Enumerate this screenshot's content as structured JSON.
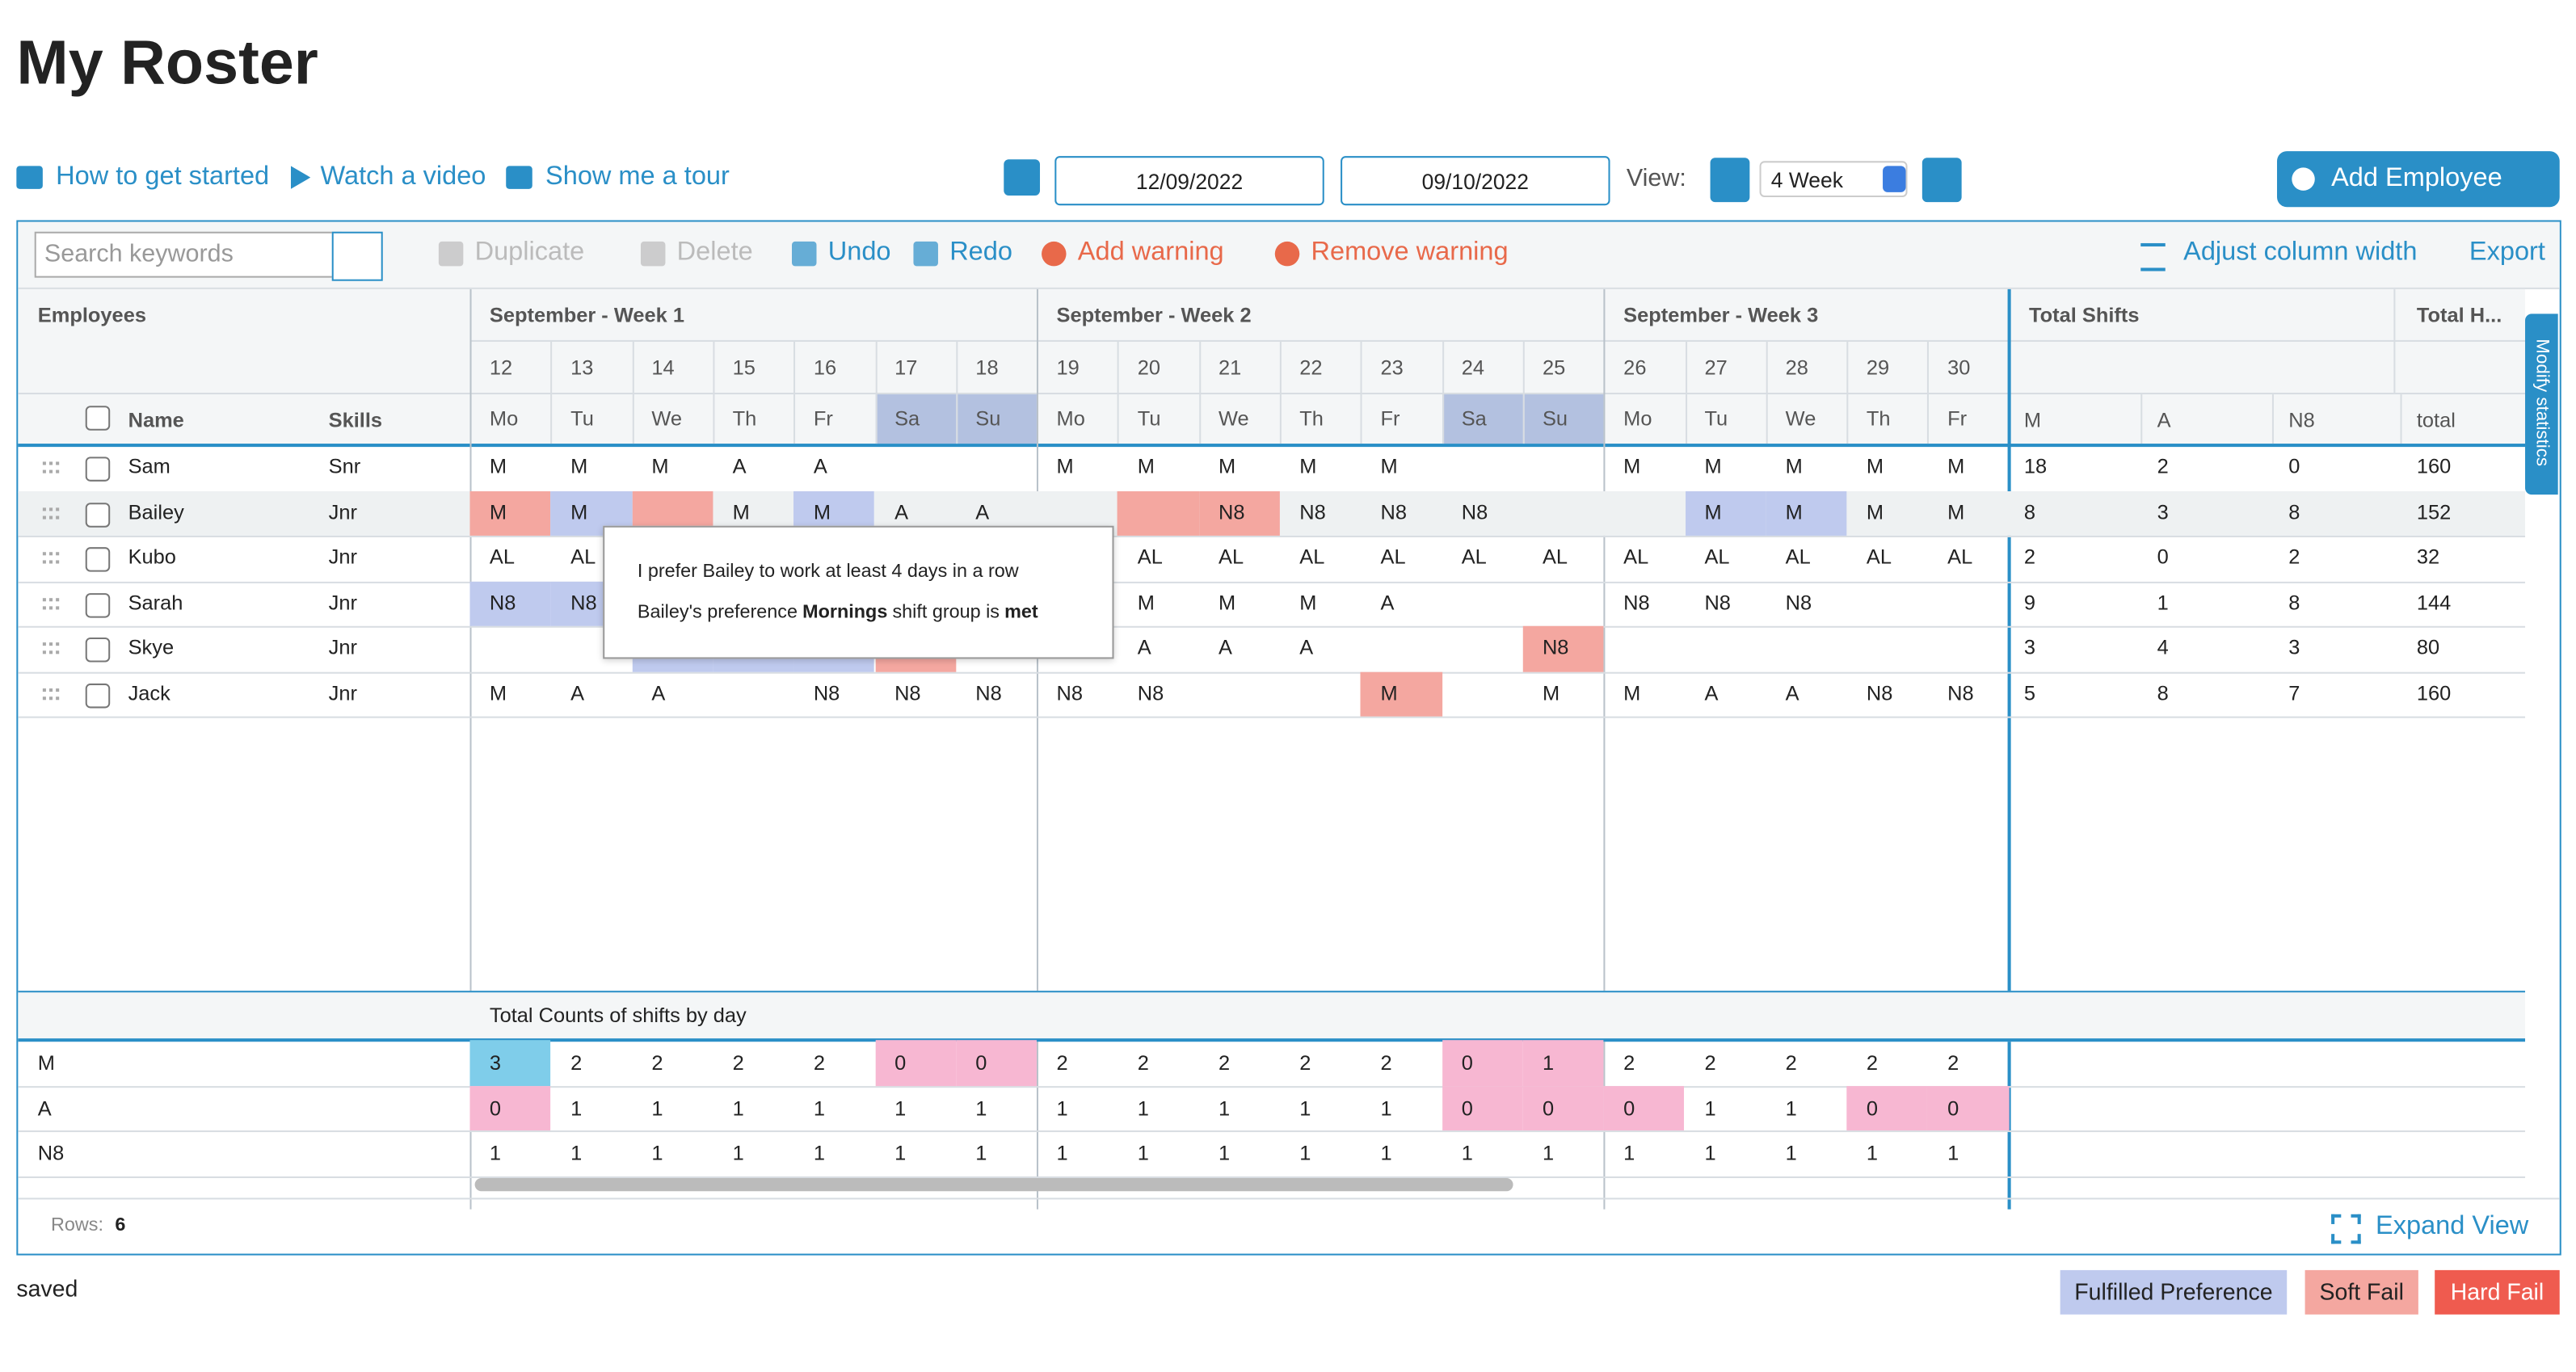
{
  "header": {
    "title": "My Roster"
  },
  "links": [
    "How to get started",
    "Watch a video",
    "Show me a tour"
  ],
  "date_range": {
    "start": "12/09/2022",
    "end": "09/10/2022"
  },
  "view": {
    "label": "View:",
    "value": "4 Week"
  },
  "add_button": "Add Employee",
  "toolbar": {
    "search_placeholder": "Search keywords",
    "actions": [
      "Duplicate",
      "Delete",
      "Undo",
      "Redo",
      "Add warning",
      "Remove warning"
    ],
    "right": [
      "Adjust column width",
      "Export"
    ]
  },
  "table": {
    "employees_header": "Employees",
    "name_header": "Name",
    "skills_header": "Skills",
    "weeks": [
      {
        "label": "September - Week 1",
        "days": [
          {
            "date": 12,
            "weekday": "Mo"
          },
          {
            "date": 13,
            "weekday": "Tu"
          },
          {
            "date": 14,
            "weekday": "We"
          },
          {
            "date": 15,
            "weekday": "Th"
          },
          {
            "date": 16,
            "weekday": "Fr"
          },
          {
            "date": 17,
            "weekday": "Sa",
            "shaded": true
          },
          {
            "date": 18,
            "weekday": "Su",
            "shaded": true
          }
        ]
      },
      {
        "label": "September - Week 2",
        "days": [
          {
            "date": 19,
            "weekday": "Mo"
          },
          {
            "date": 20,
            "weekday": "Tu"
          },
          {
            "date": 21,
            "weekday": "We"
          },
          {
            "date": 22,
            "weekday": "Th"
          },
          {
            "date": 23,
            "weekday": "Fr"
          },
          {
            "date": 24,
            "weekday": "Sa",
            "shaded": true
          },
          {
            "date": 25,
            "weekday": "Su",
            "shaded": true
          }
        ]
      },
      {
        "label": "September - Week 3",
        "days": [
          {
            "date": 26,
            "weekday": "Mo"
          },
          {
            "date": 27,
            "weekday": "Tu"
          },
          {
            "date": 28,
            "weekday": "We"
          },
          {
            "date": 29,
            "weekday": "Th"
          },
          {
            "date": 30,
            "weekday": "Fr"
          }
        ]
      }
    ],
    "stats_headers": [
      "Total Shifts",
      "Total H..."
    ],
    "stat_columns": [
      "M",
      "A",
      "N8",
      "total"
    ],
    "rows": [
      {
        "name": "Sam",
        "skills": "Snr",
        "shifts": [
          "M",
          "M",
          "M",
          "A",
          "A",
          null,
          null,
          "M",
          "M",
          "M",
          "M",
          "M",
          null,
          null,
          "M",
          "M",
          "M",
          "M",
          "M"
        ],
        "highlights": [
          null,
          null,
          null,
          null,
          null,
          null,
          null,
          null,
          null,
          null,
          null,
          null,
          null,
          null,
          null,
          null,
          null,
          null,
          null
        ],
        "stats": [
          18,
          2,
          0,
          160
        ]
      },
      {
        "name": "Bailey",
        "skills": "Jnr",
        "shifts": [
          "M",
          "M",
          null,
          "M",
          "M",
          "A",
          "A",
          null,
          null,
          "N8",
          "N8",
          "N8",
          "N8",
          null,
          null,
          "M",
          "M",
          "M",
          "M"
        ],
        "highlights": [
          "soft",
          "pref",
          "soft",
          null,
          "pref",
          null,
          null,
          null,
          "soft",
          "soft",
          null,
          null,
          null,
          null,
          null,
          "pref",
          "pref",
          null,
          null
        ],
        "stats": [
          8,
          3,
          8,
          152
        ]
      },
      {
        "name": "Kubo",
        "skills": "Jnr",
        "shifts": [
          "AL",
          "AL",
          null,
          null,
          null,
          null,
          null,
          null,
          "AL",
          "AL",
          "AL",
          "AL",
          "AL",
          "AL",
          "AL",
          "AL",
          "AL",
          "AL",
          "AL"
        ],
        "highlights": [
          null,
          null,
          null,
          null,
          null,
          null,
          null,
          null,
          null,
          null,
          null,
          null,
          null,
          null,
          null,
          null,
          null,
          null,
          null
        ],
        "stats": [
          2,
          0,
          2,
          32
        ]
      },
      {
        "name": "Sarah",
        "skills": "Jnr",
        "shifts": [
          "N8",
          "N8",
          null,
          null,
          null,
          null,
          null,
          null,
          "M",
          "M",
          "M",
          "A",
          null,
          null,
          "N8",
          "N8",
          "N8",
          null,
          null
        ],
        "highlights": [
          "pref",
          "pref",
          null,
          null,
          null,
          null,
          null,
          null,
          null,
          null,
          null,
          null,
          null,
          null,
          null,
          null,
          null,
          null,
          null
        ],
        "stats": [
          9,
          1,
          8,
          144
        ]
      },
      {
        "name": "Skye",
        "skills": "Jnr",
        "shifts": [
          null,
          null,
          null,
          null,
          null,
          null,
          null,
          null,
          "A",
          "A",
          "A",
          null,
          null,
          "N8",
          null,
          null,
          null,
          null,
          null
        ],
        "highlights": [
          null,
          null,
          "pref",
          "pref",
          "pref",
          "soft",
          null,
          null,
          null,
          null,
          null,
          null,
          null,
          "soft",
          null,
          null,
          null,
          null,
          null
        ],
        "stats": [
          3,
          4,
          3,
          80
        ]
      },
      {
        "name": "Jack",
        "skills": "Jnr",
        "shifts": [
          "M",
          "A",
          "A",
          null,
          "N8",
          "N8",
          "N8",
          "N8",
          "N8",
          null,
          null,
          "M",
          null,
          "M",
          "M",
          "A",
          "A",
          "N8",
          "N8"
        ],
        "highlights": [
          null,
          null,
          null,
          null,
          null,
          null,
          null,
          null,
          null,
          null,
          null,
          "soft",
          null,
          null,
          null,
          null,
          null,
          null,
          null
        ],
        "stats": [
          5,
          8,
          7,
          160
        ]
      }
    ]
  },
  "counts": {
    "title": "Total Counts of shifts by day",
    "rows": [
      {
        "label": "M",
        "values": [
          3,
          2,
          2,
          2,
          2,
          0,
          0,
          2,
          2,
          2,
          2,
          2,
          0,
          1,
          2,
          2,
          2,
          2,
          2
        ],
        "highlights": [
          "blue",
          null,
          null,
          null,
          null,
          "pink",
          "pink",
          null,
          null,
          null,
          null,
          null,
          "pink",
          "pink",
          null,
          null,
          null,
          null,
          null
        ]
      },
      {
        "label": "A",
        "values": [
          0,
          1,
          1,
          1,
          1,
          1,
          1,
          1,
          1,
          1,
          1,
          1,
          0,
          0,
          0,
          1,
          1,
          0,
          0
        ],
        "highlights": [
          "pink",
          null,
          null,
          null,
          null,
          null,
          null,
          null,
          null,
          null,
          null,
          null,
          "pink",
          "pink",
          "pink",
          null,
          null,
          "pink",
          "pink"
        ]
      },
      {
        "label": "N8",
        "values": [
          1,
          1,
          1,
          1,
          1,
          1,
          1,
          1,
          1,
          1,
          1,
          1,
          1,
          1,
          1,
          1,
          1,
          1,
          1
        ],
        "highlights": [
          null,
          null,
          null,
          null,
          null,
          null,
          null,
          null,
          null,
          null,
          null,
          null,
          null,
          null,
          null,
          null,
          null,
          null,
          null
        ]
      }
    ]
  },
  "tooltip": {
    "line1": "I prefer Bailey to work at least 4 days in a row",
    "line2": [
      "Bailey's preference",
      "Mornings",
      "shift group is",
      "met"
    ]
  },
  "side_tab": "Modify statistics",
  "footer": {
    "rows_label": "Rows:",
    "rows_count": 6,
    "expand": "Expand View"
  },
  "status": "saved",
  "legend": [
    "Fulfilled Preference",
    "Soft Fail",
    "Hard Fail"
  ]
}
